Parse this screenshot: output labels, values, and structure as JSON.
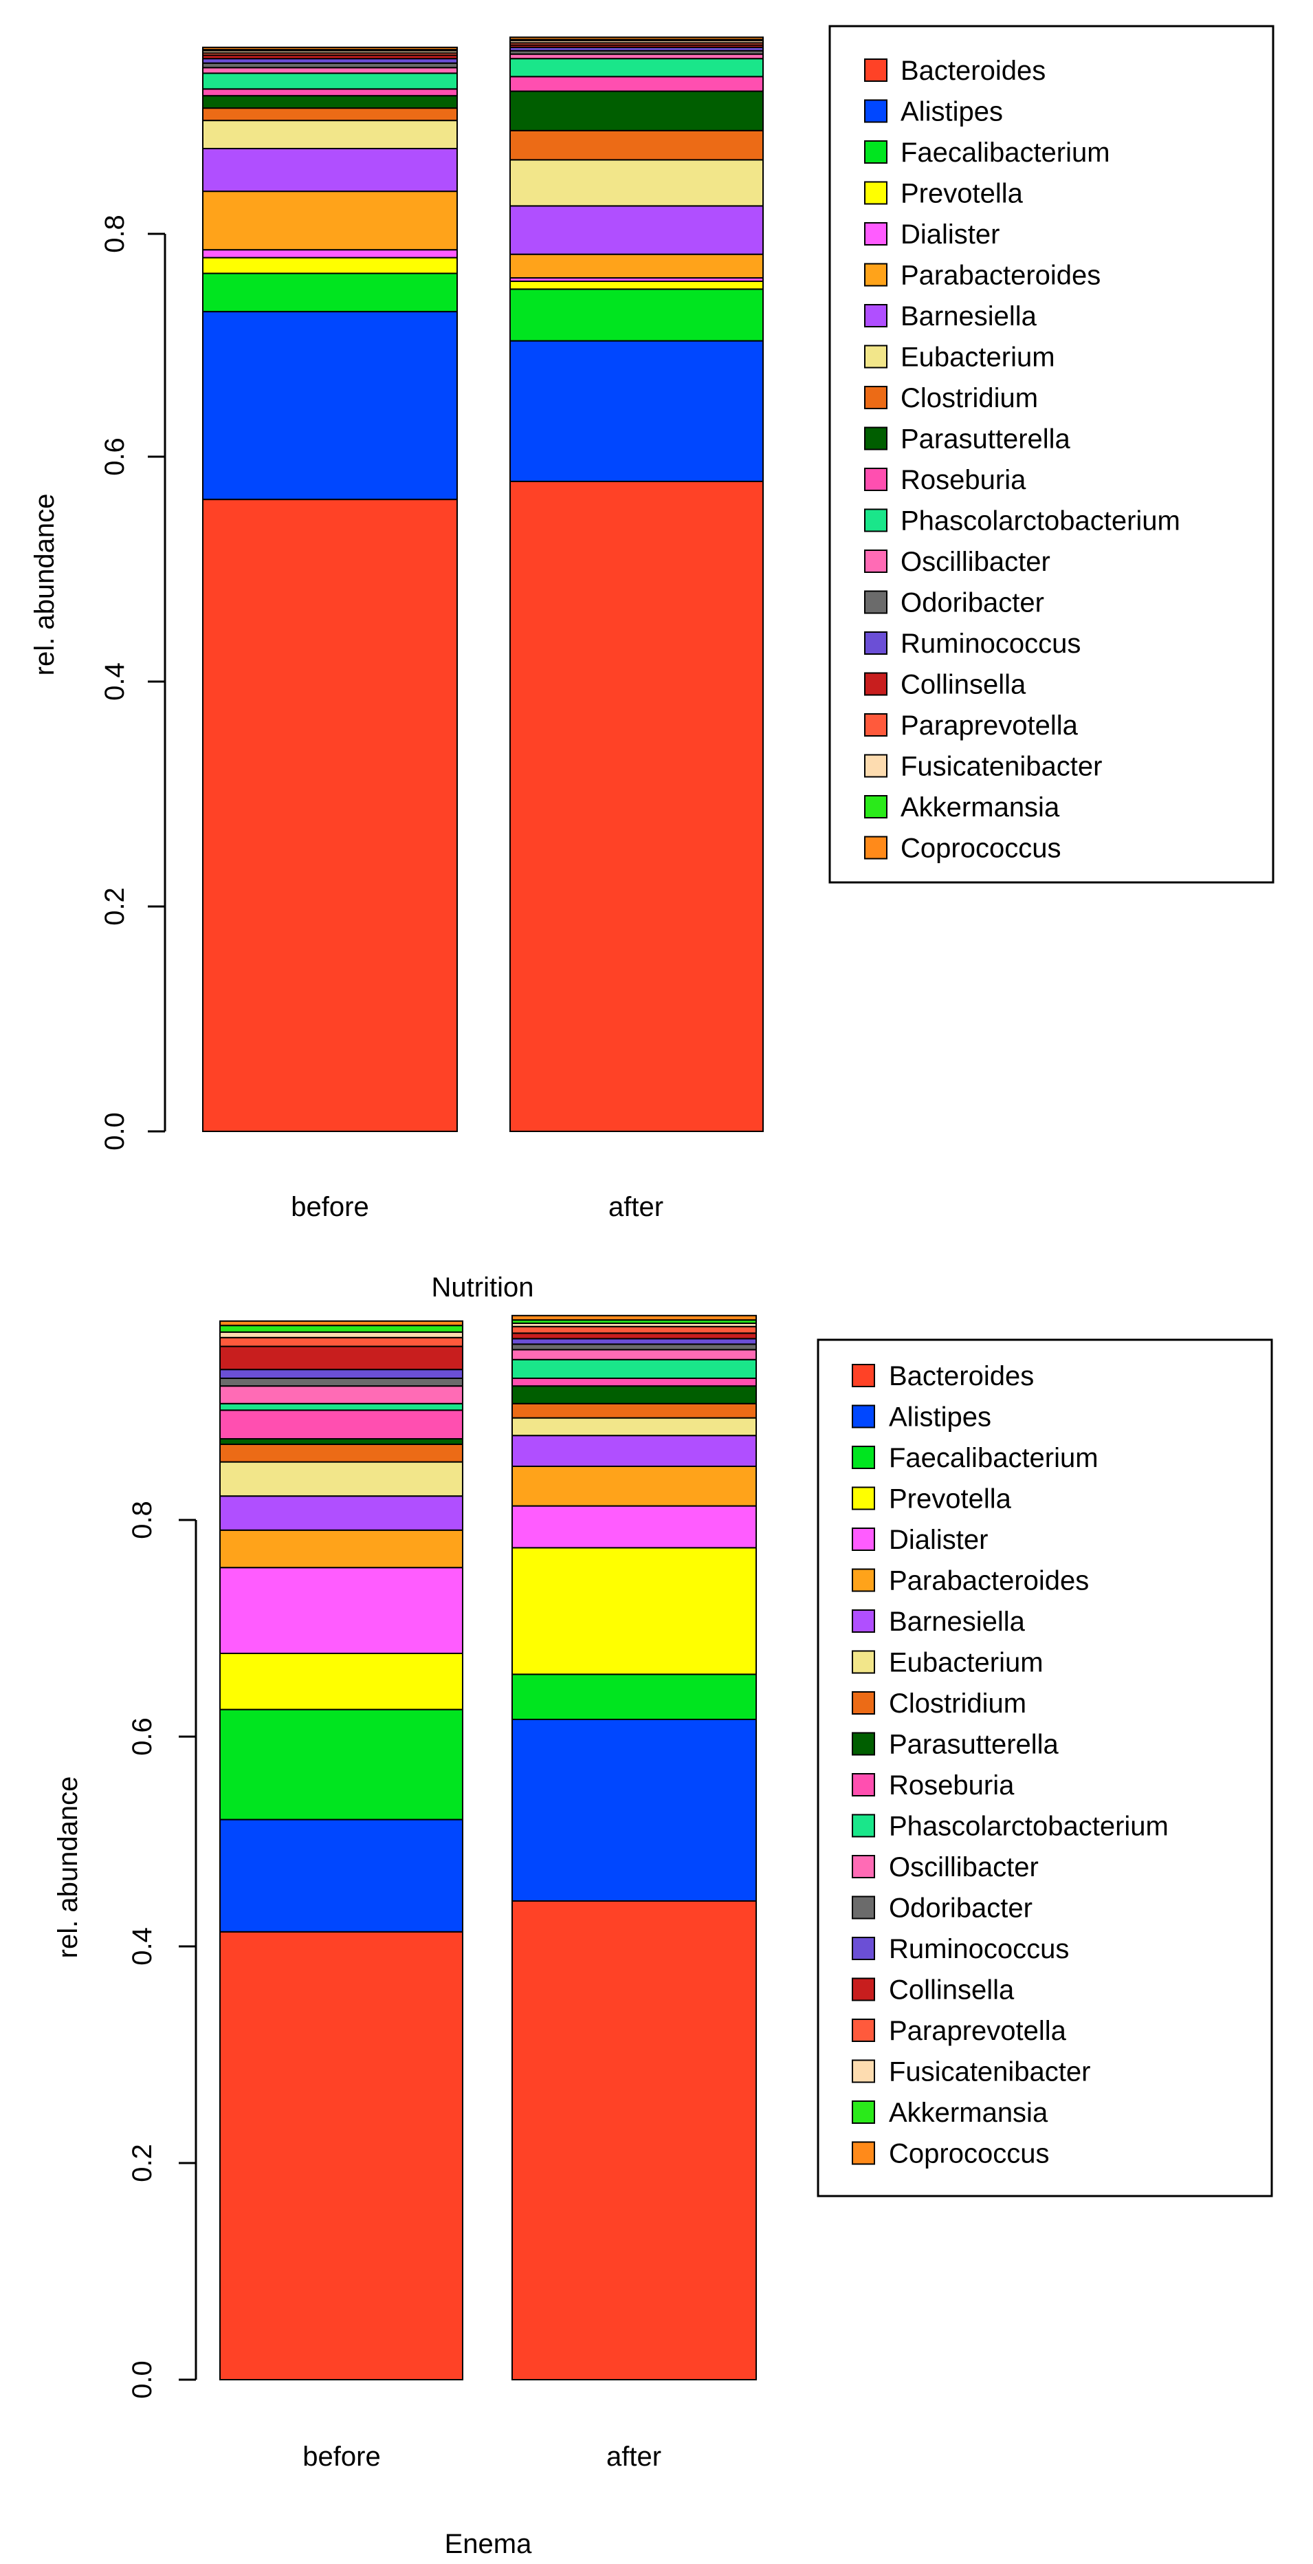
{
  "figure": {
    "panels": [
      {
        "xlabel": "Nutrition",
        "ylabel": "rel. abundance",
        "yticks": [
          "0.0",
          "0.2",
          "0.4",
          "0.6",
          "0.8"
        ],
        "categories": [
          "before",
          "after"
        ],
        "legend": [
          "Bacteroides",
          "Alistipes",
          "Faecalibacterium",
          "Prevotella",
          "Dialister",
          "Parabacteroides",
          "Barnesiella",
          "Eubacterium",
          "Clostridium",
          "Parasutterella",
          "Roseburia",
          "Phascolarctobacterium",
          "Oscillibacter",
          "Odoribacter",
          "Ruminococcus",
          "Collinsella",
          "Paraprevotella",
          "Fusicatenibacter",
          "Akkermansia",
          "Coprococcus"
        ]
      },
      {
        "xlabel": "Enema",
        "ylabel": "rel. abundance",
        "yticks": [
          "0.0",
          "0.2",
          "0.4",
          "0.6",
          "0.8"
        ],
        "categories": [
          "before",
          "after"
        ],
        "legend": [
          "Bacteroides",
          "Alistipes",
          "Faecalibacterium",
          "Prevotella",
          "Dialister",
          "Parabacteroides",
          "Barnesiella",
          "Eubacterium",
          "Clostridium",
          "Parasutterella",
          "Roseburia",
          "Phascolarctobacterium",
          "Oscillibacter",
          "Odoribacter",
          "Ruminococcus",
          "Collinsella",
          "Paraprevotella",
          "Fusicatenibacter",
          "Akkermansia",
          "Coprococcus"
        ]
      }
    ]
  },
  "colors": {
    "Bacteroides": "#ff4226",
    "Alistipes": "#0047ff",
    "Faecalibacterium": "#00e51f",
    "Prevotella": "#ffff00",
    "Dialister": "#ff5cff",
    "Parabacteroides": "#ffa31a",
    "Barnesiella": "#b04fff",
    "Eubacterium": "#f2e68a",
    "Clostridium": "#ec6b16",
    "Parasutterella": "#005e00",
    "Roseburia": "#ff4fb0",
    "Phascolarctobacterium": "#1ae68a",
    "Oscillibacter": "#ff6bb5",
    "Odoribacter": "#6b6b6b",
    "Ruminococcus": "#6b4fd6",
    "Collinsella": "#c81e1e",
    "Paraprevotella": "#ff5a3c",
    "Fusicatenibacter": "#fddcb0",
    "Akkermansia": "#2aea1a",
    "Coprococcus": "#ff8a1a"
  },
  "chart_data": [
    {
      "type": "bar",
      "stacked": true,
      "title": "",
      "xlabel": "Nutrition",
      "ylabel": "rel. abundance",
      "ylim": [
        0,
        0.98
      ],
      "categories": [
        "before",
        "after"
      ],
      "legend_position": "right",
      "series": [
        {
          "name": "Bacteroides",
          "values": [
            0.562,
            0.578
          ]
        },
        {
          "name": "Alistipes",
          "values": [
            0.167,
            0.125
          ]
        },
        {
          "name": "Faecalibacterium",
          "values": [
            0.034,
            0.046
          ]
        },
        {
          "name": "Prevotella",
          "values": [
            0.014,
            0.007
          ]
        },
        {
          "name": "Dialister",
          "values": [
            0.007,
            0.003
          ]
        },
        {
          "name": "Parabacteroides",
          "values": [
            0.052,
            0.021
          ]
        },
        {
          "name": "Barnesiella",
          "values": [
            0.038,
            0.043
          ]
        },
        {
          "name": "Eubacterium",
          "values": [
            0.025,
            0.041
          ]
        },
        {
          "name": "Clostridium",
          "values": [
            0.011,
            0.026
          ]
        },
        {
          "name": "Parasutterella",
          "values": [
            0.011,
            0.035
          ]
        },
        {
          "name": "Roseburia",
          "values": [
            0.006,
            0.013
          ]
        },
        {
          "name": "Phascolarctobacterium",
          "values": [
            0.014,
            0.016
          ]
        },
        {
          "name": "Oscillibacter",
          "values": [
            0.005,
            0.004
          ]
        },
        {
          "name": "Odoribacter",
          "values": [
            0.004,
            0.003
          ]
        },
        {
          "name": "Ruminococcus",
          "values": [
            0.004,
            0.003
          ]
        },
        {
          "name": "Collinsella",
          "values": [
            0.003,
            0.002
          ]
        },
        {
          "name": "Paraprevotella",
          "values": [
            0.002,
            0.002
          ]
        },
        {
          "name": "Fusicatenibacter",
          "values": [
            0.002,
            0.002
          ]
        },
        {
          "name": "Akkermansia",
          "values": [
            0.001,
            0.001
          ]
        },
        {
          "name": "Coprococcus",
          "values": [
            0.002,
            0.002
          ]
        }
      ]
    },
    {
      "type": "bar",
      "stacked": true,
      "title": "",
      "xlabel": "Enema",
      "ylabel": "rel. abundance",
      "ylim": [
        0,
        0.98
      ],
      "categories": [
        "before",
        "after"
      ],
      "legend_position": "right",
      "series": [
        {
          "name": "Bacteroides",
          "values": [
            0.407,
            0.435
          ]
        },
        {
          "name": "Alistipes",
          "values": [
            0.102,
            0.165
          ]
        },
        {
          "name": "Faecalibacterium",
          "values": [
            0.1,
            0.041
          ]
        },
        {
          "name": "Prevotella",
          "values": [
            0.051,
            0.115
          ]
        },
        {
          "name": "Dialister",
          "values": [
            0.078,
            0.038
          ]
        },
        {
          "name": "Parabacteroides",
          "values": [
            0.034,
            0.036
          ]
        },
        {
          "name": "Barnesiella",
          "values": [
            0.031,
            0.028
          ]
        },
        {
          "name": "Eubacterium",
          "values": [
            0.031,
            0.016
          ]
        },
        {
          "name": "Clostridium",
          "values": [
            0.016,
            0.013
          ]
        },
        {
          "name": "Parasutterella",
          "values": [
            0.005,
            0.016
          ]
        },
        {
          "name": "Roseburia",
          "values": [
            0.026,
            0.007
          ]
        },
        {
          "name": "Phascolarctobacterium",
          "values": [
            0.006,
            0.017
          ]
        },
        {
          "name": "Oscillibacter",
          "values": [
            0.016,
            0.009
          ]
        },
        {
          "name": "Odoribacter",
          "values": [
            0.007,
            0.005
          ]
        },
        {
          "name": "Ruminococcus",
          "values": [
            0.008,
            0.005
          ]
        },
        {
          "name": "Collinsella",
          "values": [
            0.021,
            0.005
          ]
        },
        {
          "name": "Paraprevotella",
          "values": [
            0.008,
            0.006
          ]
        },
        {
          "name": "Fusicatenibacter",
          "values": [
            0.005,
            0.003
          ]
        },
        {
          "name": "Akkermansia",
          "values": [
            0.006,
            0.003
          ]
        },
        {
          "name": "Coprococcus",
          "values": [
            0.004,
            0.004
          ]
        }
      ]
    }
  ]
}
